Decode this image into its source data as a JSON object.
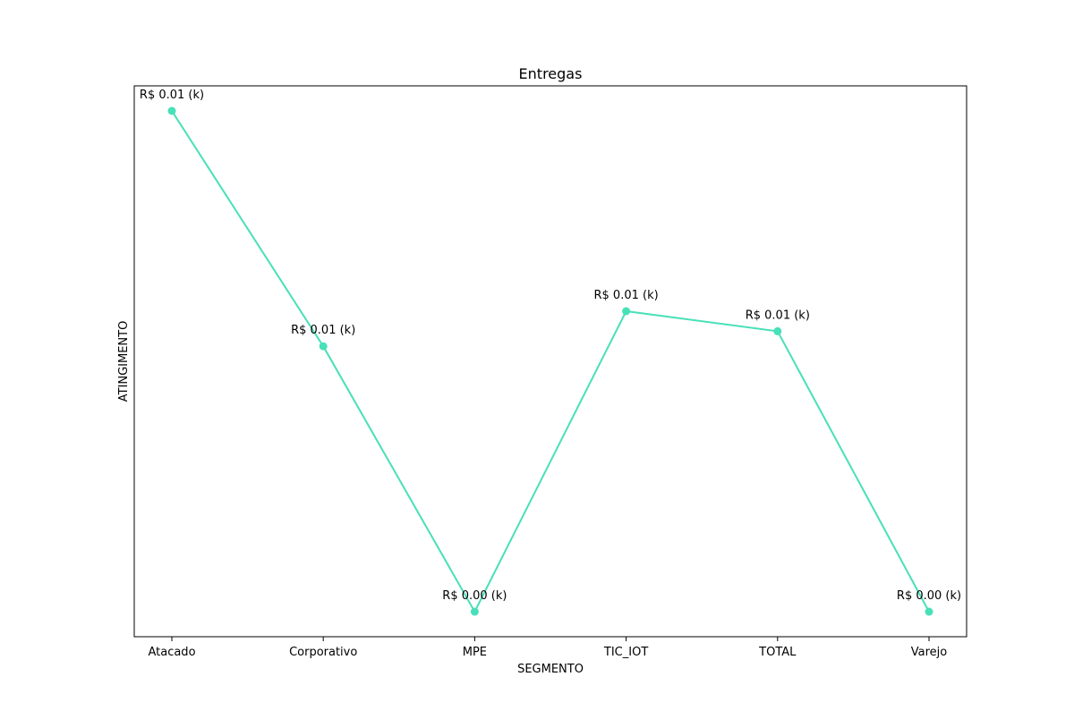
{
  "chart_data": {
    "type": "line",
    "title": "Entregas",
    "xlabel": "SEGMENTO",
    "ylabel": "ATINGIMENTO",
    "categories": [
      "Atacado",
      "Corporativo",
      "MPE",
      "TIC_IOT",
      "TOTAL",
      "Varejo"
    ],
    "series": [
      {
        "values": [
          0.01,
          0.0053,
          0.0,
          0.006,
          0.0056,
          0.0
        ],
        "labels": [
          "R$ 0.01 (k)",
          "R$ 0.01 (k)",
          "R$ 0.00 (k)",
          "R$ 0.01 (k)",
          "R$ 0.01 (k)",
          "R$ 0.00 (k)"
        ],
        "color": "#48e0b8"
      }
    ],
    "ylim": [
      -0.0005,
      0.0105
    ],
    "grid": false,
    "y_ticks_shown": false
  }
}
